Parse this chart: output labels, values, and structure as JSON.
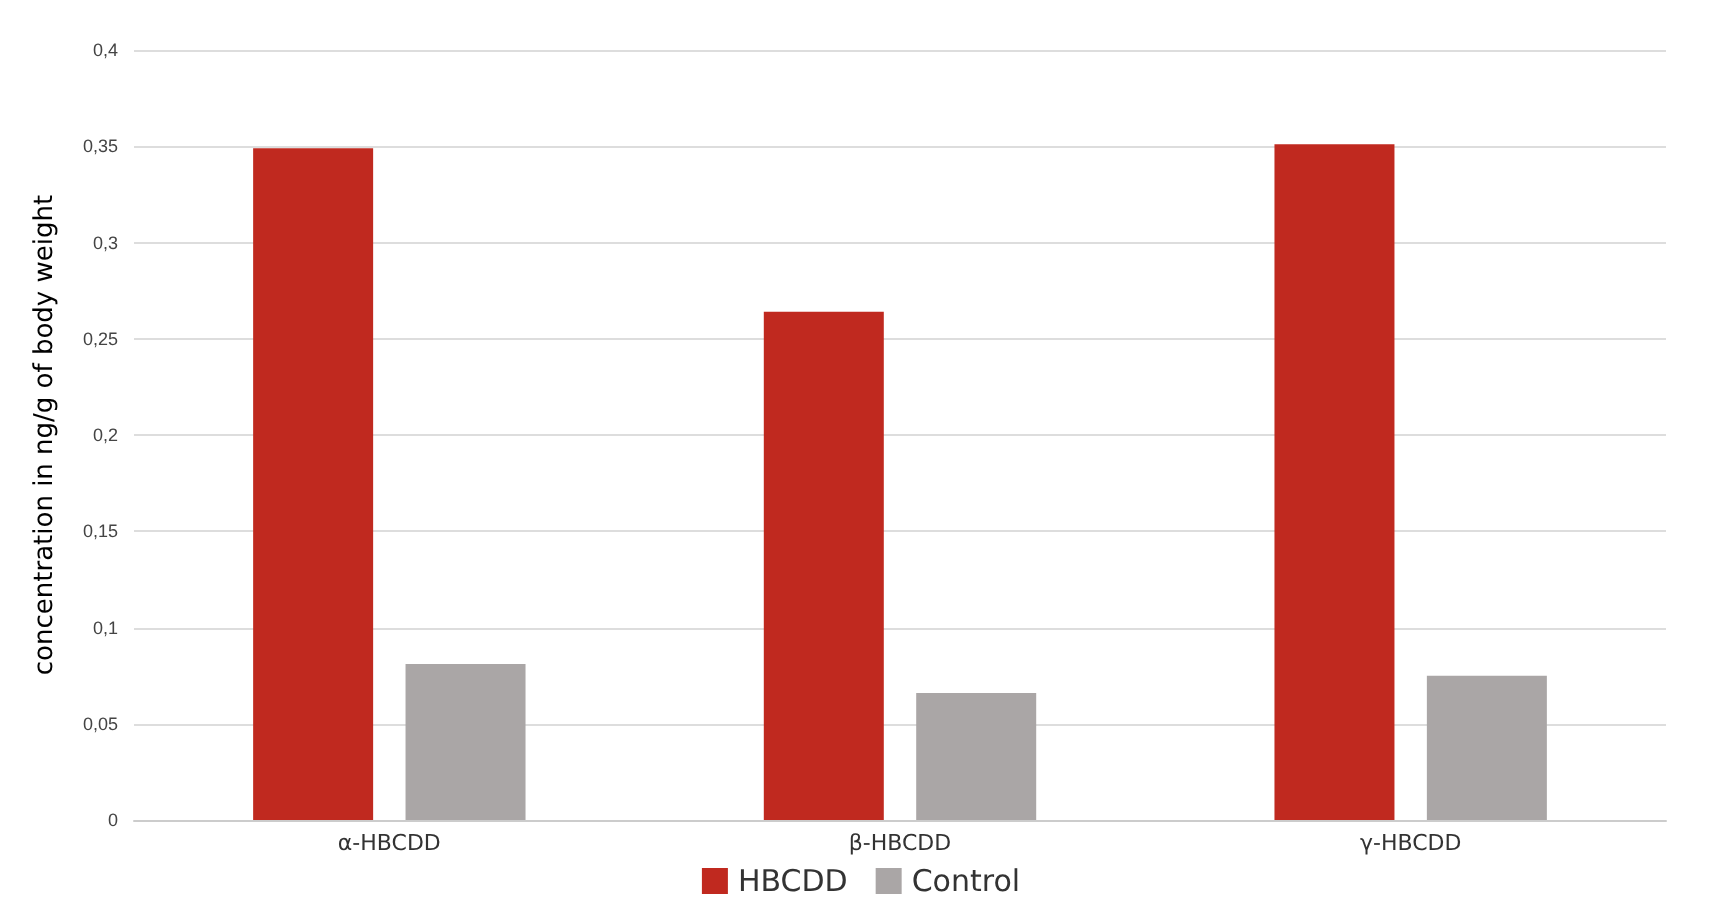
{
  "chart_data": {
    "type": "bar",
    "ylabel": "concentration in ng/g of body weight",
    "categories": [
      "α-HBCDD",
      "β-HBCDD",
      "γ-HBCDD"
    ],
    "series": [
      {
        "name": "HBCDD",
        "color": "#c0291f",
        "values": [
          0.349,
          0.264,
          0.351
        ]
      },
      {
        "name": "Control",
        "color": "#aaa6a6",
        "values": [
          0.081,
          0.066,
          0.075
        ]
      }
    ],
    "ylim": [
      0,
      0.4
    ],
    "yticks": [
      0,
      {
        "value": 0.05,
        "label": "0,05"
      },
      {
        "value": 0.1,
        "label": "0,1"
      },
      {
        "value": 0.15,
        "label": "0,15"
      },
      {
        "value": 0.2,
        "label": "0,2"
      },
      {
        "value": 0.25,
        "label": "0,25"
      },
      {
        "value": 0.3,
        "label": "0,3"
      },
      {
        "value": 0.35,
        "label": "0,35"
      },
      {
        "value": 0.4,
        "label": "0,4"
      }
    ],
    "grid": "y",
    "legend": "bottom"
  }
}
